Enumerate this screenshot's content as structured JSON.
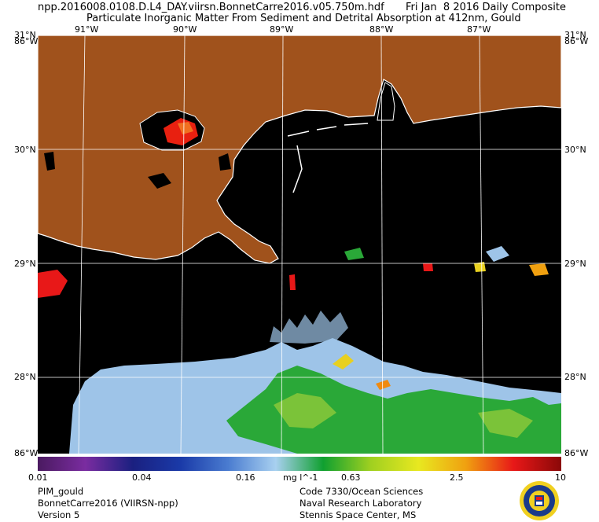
{
  "header": {
    "filename": "npp.2016008.0108.D.L4_DAY.viirsn.BonnetCarre2016.v05.750m.hdf",
    "date": "Fri Jan  8 2016 Daily Composite",
    "title": "Particulate Inorganic Matter From Sediment and Detrital Absorption at 412nm, Gould"
  },
  "map": {
    "colors": {
      "land": "#a0521c",
      "ocean_nodata": "#000000",
      "coastline": "#ffffff",
      "graticule": "#ffffff",
      "low_concentration": "#9ec4e8"
    },
    "lat_labels": [
      "31°N",
      "30°N",
      "29°N",
      "28°N"
    ],
    "lon_labels_top": [
      "91°W",
      "90°W",
      "89°W",
      "88°W",
      "87°W"
    ],
    "corner_labels": {
      "top_left": "86°W",
      "top_right": "86°W",
      "bottom_left": "86°W",
      "bottom_right": "86°W"
    }
  },
  "colorbar": {
    "tick_labels": [
      "0.01",
      "0.04",
      "0.16",
      "0.63",
      "2.5",
      "10"
    ],
    "unit": "mg l^-1",
    "colors": [
      "#4a1a60",
      "#7a2ca0",
      "#1a2080",
      "#1a3aa8",
      "#4a7cd0",
      "#a8d0f0",
      "#10a030",
      "#a0d020",
      "#e8e820",
      "#f0a010",
      "#e81818",
      "#8a0808"
    ]
  },
  "footer": {
    "left": [
      "PIM_gould",
      "BonnetCarre2016 (VIIRSN-npp)",
      "Version 5"
    ],
    "right": [
      "Code 7330/Ocean Sciences",
      "Naval Research Laboratory",
      "Stennis Space Center, MS"
    ]
  },
  "seal": {
    "name": "nrl-seal-icon"
  }
}
